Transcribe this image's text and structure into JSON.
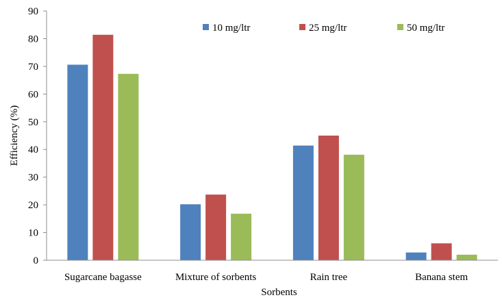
{
  "chart_data": {
    "type": "bar",
    "categories": [
      "Sugarcane bagasse",
      "Mixture of sorbents",
      "Rain tree",
      "Banana stem"
    ],
    "series": [
      {
        "name": "10 mg/ltr",
        "color": "#4F81BD",
        "values": [
          70.6,
          20.2,
          41.4,
          2.8
        ]
      },
      {
        "name": "25 mg/ltr",
        "color": "#C0504D",
        "values": [
          81.4,
          23.7,
          45.0,
          6.1
        ]
      },
      {
        "name": "50 mg/ltr",
        "color": "#9BBB59",
        "values": [
          67.3,
          16.8,
          38.1,
          2.0
        ]
      }
    ],
    "xlabel": "Sorbents",
    "ylabel": "Efficiency (%)",
    "ylim": [
      0,
      90
    ],
    "yticks": [
      0,
      10,
      20,
      30,
      40,
      50,
      60,
      70,
      80,
      90
    ],
    "grid": false,
    "legend_position": "top-right"
  }
}
